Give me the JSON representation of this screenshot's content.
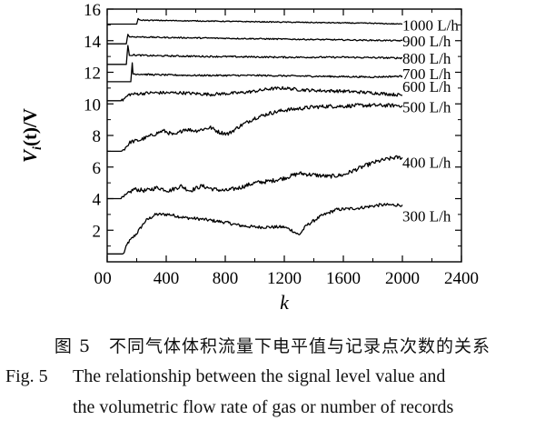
{
  "chart_data": {
    "type": "line",
    "xlabel": "k",
    "ylabel_main": "V",
    "ylabel_sub": "i",
    "ylabel_rest": "(t)/V",
    "xlim": [
      0,
      2400
    ],
    "ylim": [
      0,
      16
    ],
    "x_ticks": [
      0,
      400,
      800,
      1200,
      1600,
      2000,
      2400
    ],
    "y_ticks": [
      2,
      4,
      6,
      8,
      10,
      12,
      14,
      16
    ],
    "minor_ticks": true,
    "grid": false,
    "legend": "none (labels at right end of each line)",
    "series": [
      {
        "name": "300 L/h",
        "label_y": 2.9,
        "noise": 0.1,
        "points": [
          [
            0,
            0.5
          ],
          [
            110,
            0.5
          ],
          [
            140,
            1.2
          ],
          [
            200,
            1.8
          ],
          [
            260,
            2.6
          ],
          [
            330,
            3.0
          ],
          [
            420,
            3.0
          ],
          [
            520,
            2.8
          ],
          [
            640,
            2.7
          ],
          [
            800,
            2.5
          ],
          [
            900,
            2.3
          ],
          [
            1000,
            2.2
          ],
          [
            1100,
            2.2
          ],
          [
            1200,
            2.2
          ],
          [
            1250,
            2.0
          ],
          [
            1300,
            1.7
          ],
          [
            1350,
            2.3
          ],
          [
            1450,
            2.9
          ],
          [
            1550,
            3.3
          ],
          [
            1700,
            3.4
          ],
          [
            1850,
            3.6
          ],
          [
            1950,
            3.6
          ],
          [
            2000,
            3.6
          ]
        ]
      },
      {
        "name": "400 L/h",
        "label_y": 6.3,
        "noise": 0.13,
        "points": [
          [
            0,
            4.0
          ],
          [
            100,
            4.0
          ],
          [
            180,
            4.6
          ],
          [
            260,
            4.5
          ],
          [
            340,
            4.7
          ],
          [
            420,
            4.5
          ],
          [
            500,
            4.8
          ],
          [
            560,
            4.5
          ],
          [
            640,
            4.8
          ],
          [
            720,
            4.6
          ],
          [
            800,
            4.5
          ],
          [
            900,
            4.7
          ],
          [
            1000,
            5.0
          ],
          [
            1100,
            5.1
          ],
          [
            1200,
            5.3
          ],
          [
            1300,
            5.6
          ],
          [
            1400,
            5.5
          ],
          [
            1500,
            5.4
          ],
          [
            1600,
            5.5
          ],
          [
            1700,
            5.9
          ],
          [
            1780,
            6.2
          ],
          [
            1850,
            6.4
          ],
          [
            1900,
            6.5
          ],
          [
            1950,
            6.6
          ],
          [
            2000,
            6.6
          ]
        ]
      },
      {
        "name": "500 L/h",
        "label_y": 9.8,
        "noise": 0.12,
        "points": [
          [
            0,
            7.0
          ],
          [
            100,
            7.0
          ],
          [
            160,
            7.6
          ],
          [
            220,
            7.7
          ],
          [
            300,
            8.0
          ],
          [
            380,
            8.3
          ],
          [
            460,
            8.0
          ],
          [
            520,
            8.4
          ],
          [
            600,
            8.3
          ],
          [
            700,
            8.5
          ],
          [
            760,
            8.2
          ],
          [
            820,
            8.1
          ],
          [
            900,
            8.6
          ],
          [
            1000,
            9.1
          ],
          [
            1100,
            9.4
          ],
          [
            1200,
            9.6
          ],
          [
            1300,
            9.7
          ],
          [
            1400,
            9.8
          ],
          [
            1500,
            9.85
          ],
          [
            1600,
            9.85
          ],
          [
            1700,
            9.9
          ],
          [
            1800,
            9.9
          ],
          [
            2000,
            9.9
          ]
        ]
      },
      {
        "name": "600 L/h",
        "label_y": 11.1,
        "noise": 0.1,
        "points": [
          [
            0,
            10.2
          ],
          [
            100,
            10.2
          ],
          [
            150,
            10.6
          ],
          [
            300,
            10.7
          ],
          [
            500,
            10.7
          ],
          [
            700,
            10.6
          ],
          [
            900,
            10.7
          ],
          [
            1000,
            10.8
          ],
          [
            1100,
            10.95
          ],
          [
            1200,
            11.0
          ],
          [
            1300,
            10.9
          ],
          [
            1400,
            10.85
          ],
          [
            1600,
            10.8
          ],
          [
            1800,
            10.7
          ],
          [
            2000,
            10.55
          ]
        ]
      },
      {
        "name": "700 L/h",
        "label_y": 11.9,
        "noise": 0.05,
        "points": [
          [
            0,
            11.4
          ],
          [
            160,
            11.4
          ],
          [
            170,
            12.6
          ],
          [
            175,
            11.9
          ],
          [
            300,
            11.85
          ],
          [
            600,
            11.8
          ],
          [
            1000,
            11.8
          ],
          [
            1400,
            11.75
          ],
          [
            1800,
            11.7
          ],
          [
            2000,
            11.75
          ]
        ]
      },
      {
        "name": "800 L/h",
        "label_y": 12.9,
        "noise": 0.05,
        "points": [
          [
            0,
            12.5
          ],
          [
            130,
            12.5
          ],
          [
            140,
            13.7
          ],
          [
            150,
            13.1
          ],
          [
            300,
            13.05
          ],
          [
            700,
            13.0
          ],
          [
            1200,
            12.95
          ],
          [
            1600,
            12.95
          ],
          [
            2000,
            12.9
          ]
        ]
      },
      {
        "name": "900 L/h",
        "label_y": 14.0,
        "noise": 0.04,
        "points": [
          [
            0,
            13.8
          ],
          [
            130,
            13.8
          ],
          [
            140,
            14.4
          ],
          [
            150,
            14.25
          ],
          [
            400,
            14.2
          ],
          [
            800,
            14.15
          ],
          [
            1200,
            14.1
          ],
          [
            1600,
            14.05
          ],
          [
            2000,
            14.0
          ]
        ]
      },
      {
        "name": "1000 L/h",
        "label_y": 15.0,
        "noise": 0.03,
        "points": [
          [
            0,
            15.05
          ],
          [
            200,
            15.05
          ],
          [
            210,
            15.4
          ],
          [
            220,
            15.3
          ],
          [
            600,
            15.25
          ],
          [
            1000,
            15.2
          ],
          [
            1400,
            15.15
          ],
          [
            1800,
            15.1
          ],
          [
            2000,
            15.05
          ]
        ]
      }
    ]
  },
  "caption": {
    "cn": "图 5　不同气体体积流量下电平值与记录点次数的关系",
    "en_label": "Fig. 5",
    "en_line1": "The relationship between the signal level value and",
    "en_line2": "the volumetric flow rate of gas or number of records"
  }
}
